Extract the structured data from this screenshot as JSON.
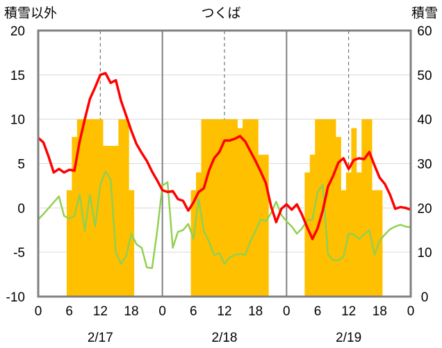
{
  "chart_data": {
    "type": "bar+line",
    "title": "つくば",
    "ylabel_left": "積雪以外",
    "ylabel_right": "積雪",
    "ylim_left": [
      -10,
      20
    ],
    "yticks_left": [
      "20",
      "15",
      "10",
      "5",
      "0",
      "-5",
      "-10"
    ],
    "ylim_right": [
      0,
      60
    ],
    "yticks_right": [
      "60",
      "50",
      "40",
      "30",
      "20",
      "10",
      "0"
    ],
    "x_hour_range": [
      0,
      72
    ],
    "xtick_labels": [
      "0",
      "6",
      "12",
      "18",
      "0",
      "6",
      "12",
      "18",
      "0",
      "6",
      "12",
      "18",
      "0"
    ],
    "day_labels": [
      "2/17",
      "2/18",
      "2/19"
    ],
    "colors": {
      "snow_depth": "#FFC000",
      "temperature": "#FF0000",
      "dew_point": "#92D050",
      "baseline": "#7030A0",
      "frame": "#808080"
    },
    "series": [
      {
        "name": "snow_depth",
        "axis": "right",
        "type": "bar",
        "hours": [
          6,
          7,
          8,
          9,
          10,
          11,
          12,
          13,
          14,
          15,
          16,
          17,
          18,
          30,
          31,
          32,
          33,
          34,
          35,
          36,
          37,
          38,
          39,
          40,
          41,
          42,
          43,
          44,
          52,
          53,
          54,
          55,
          56,
          57,
          58,
          59,
          60,
          61,
          62,
          63,
          64,
          65,
          66
        ],
        "values": [
          24,
          36,
          40,
          40,
          40,
          40,
          40,
          34,
          34,
          34,
          40,
          40,
          24,
          24,
          28,
          40,
          40,
          40,
          40,
          40,
          40,
          40,
          38,
          40,
          40,
          40,
          32,
          32,
          28,
          32,
          40,
          40,
          40,
          40,
          36,
          24,
          28,
          38,
          28,
          40,
          40,
          24,
          24
        ]
      },
      {
        "name": "temperature",
        "axis": "left",
        "type": "line",
        "hours": [
          0,
          1,
          2,
          3,
          4,
          5,
          6,
          7,
          8,
          9,
          10,
          11,
          12,
          13,
          14,
          15,
          16,
          17,
          18,
          19,
          20,
          21,
          22,
          23,
          24,
          25,
          26,
          27,
          28,
          29,
          30,
          31,
          32,
          33,
          34,
          35,
          36,
          37,
          38,
          39,
          40,
          41,
          42,
          43,
          44,
          45,
          46,
          47,
          48,
          49,
          50,
          51,
          52,
          53,
          54,
          55,
          56,
          57,
          58,
          59,
          60,
          61,
          62,
          63,
          64,
          65,
          66,
          67,
          68,
          69,
          70,
          71,
          72
        ],
        "values": [
          7.9,
          7.4,
          5.8,
          4,
          4.4,
          4,
          4.3,
          4.2,
          7.5,
          10,
          12.3,
          13.6,
          15,
          15.2,
          14.1,
          14.4,
          12.1,
          10.4,
          8.7,
          7.2,
          6.2,
          5.3,
          4.1,
          3.1,
          2,
          1.8,
          1.9,
          1,
          0.8,
          -0.3,
          0.6,
          1.8,
          2.2,
          4.2,
          5.6,
          6.3,
          7.6,
          7.6,
          7.8,
          8.1,
          7.5,
          6.4,
          5.3,
          4.1,
          2.8,
          0.2,
          -1.6,
          -0.1,
          0.4,
          -0.2,
          0.4,
          -0.8,
          -2.2,
          -3.5,
          -2.3,
          -0.3,
          2.4,
          3.6,
          5.1,
          5.6,
          4.4,
          5.4,
          5.6,
          5.5,
          6.3,
          4.8,
          3.4,
          2.7,
          1.5,
          -0.1,
          0.1,
          0,
          -0.2
        ]
      },
      {
        "name": "dew_point",
        "axis": "left",
        "type": "line",
        "hours": [
          0,
          1,
          4,
          5,
          6,
          7,
          8,
          9,
          10,
          11,
          12,
          13,
          14,
          15,
          16,
          17,
          18,
          19,
          20,
          21,
          22,
          23,
          24,
          25,
          26,
          27,
          28,
          29,
          30,
          31,
          32,
          33,
          34,
          35,
          36,
          37,
          38,
          39,
          40,
          41,
          42,
          43,
          44,
          45,
          46,
          47,
          48,
          49,
          50,
          51,
          52,
          53,
          54,
          55,
          56,
          57,
          58,
          59,
          60,
          61,
          62,
          63,
          64,
          65,
          66,
          67,
          68,
          69,
          70,
          71,
          72
        ],
        "values": [
          -1.3,
          -0.7,
          1.3,
          -0.9,
          -1.2,
          -0.9,
          1.5,
          -2.6,
          1.5,
          -2.1,
          2.6,
          4.1,
          3.2,
          -5,
          -6.3,
          -5.4,
          -2.9,
          -4.1,
          -4.5,
          -6.7,
          -6.8,
          -2.6,
          2.5,
          2.9,
          -4.5,
          -2.7,
          -2.5,
          -1.8,
          -3.5,
          1.1,
          -2.6,
          -3.8,
          -5.3,
          -5.1,
          -6.3,
          -5.6,
          -5.3,
          -5.2,
          -5.3,
          -3.8,
          -2.6,
          -1.3,
          -1.5,
          -0.6,
          0.7,
          -0.8,
          -1.5,
          -2.1,
          -2.9,
          -2.3,
          -1.4,
          -1.3,
          1.8,
          2.6,
          -5.2,
          -5.9,
          -5.9,
          -5.5,
          -2.9,
          -3,
          -3.5,
          -3,
          -2.5,
          -5.3,
          -3.7,
          -3,
          -2.4,
          -2.1,
          -1.9,
          -2.1,
          -2.2
        ]
      },
      {
        "name": "baseline",
        "axis": "left",
        "type": "line",
        "hours": [
          0,
          72
        ],
        "values": [
          -10,
          -10
        ]
      }
    ]
  }
}
